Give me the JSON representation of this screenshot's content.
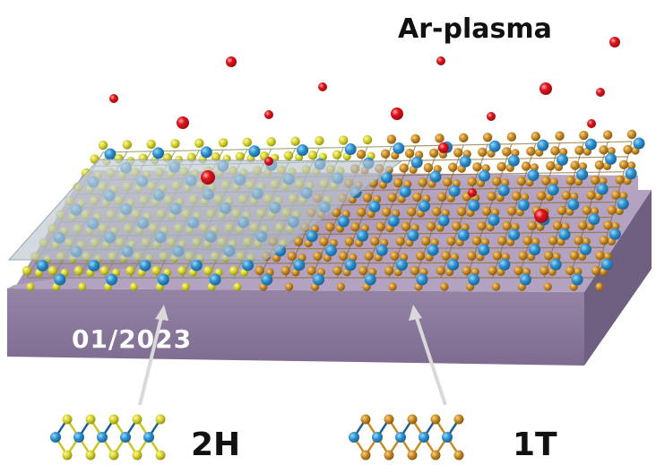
{
  "title": "Ar-plasma",
  "date_stamp": "01/2023",
  "phase_left": "2H",
  "phase_right": "1T",
  "colors": {
    "plasma_particle": "#e0141c",
    "sulfur_2h": "#d4d12a",
    "sulfur_1t": "#c88a20",
    "metal": "#2a8fcf",
    "substrate_top": "#a992b6",
    "substrate_front": "#8e7b9e",
    "substrate_side": "#6f5f80",
    "mask": "#b8c4cf"
  },
  "icons": [
    "plasma-particle-icon",
    "arrow-icon",
    "crystal-structure-icon"
  ]
}
